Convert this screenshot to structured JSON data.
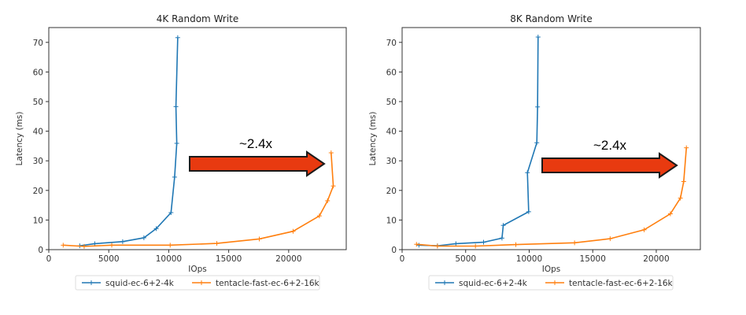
{
  "chart_data": [
    {
      "type": "line",
      "title": "4K  Random Write",
      "xlabel": "IOps",
      "ylabel": "Latency (ms)",
      "xlim": [
        0,
        24800
      ],
      "ylim": [
        0,
        75
      ],
      "xticks": [
        0,
        5000,
        10000,
        15000,
        20000
      ],
      "yticks": [
        0,
        10,
        20,
        30,
        40,
        50,
        60,
        70
      ],
      "grid": false,
      "legend": "bottom-center",
      "annotation": "~2.4x",
      "series": [
        {
          "name": "squid-ec-6+2-4k",
          "color": "#1f77b4",
          "x": [
            2580,
            3830,
            6160,
            7930,
            8960,
            10190,
            10490,
            10670,
            10600,
            10750
          ],
          "y": [
            1.3,
            2.0,
            2.7,
            4.0,
            7.1,
            12.5,
            24.5,
            35.9,
            48.3,
            71.6
          ]
        },
        {
          "name": "tentacle-fast-ec-6+2-16k",
          "color": "#ff7f0e",
          "x": [
            1200,
            2950,
            5250,
            10120,
            14010,
            17550,
            20370,
            22560,
            23240,
            23720,
            23540
          ],
          "y": [
            1.5,
            1.1,
            1.5,
            1.5,
            2.1,
            3.6,
            6.2,
            11.4,
            16.5,
            21.5,
            32.7
          ]
        }
      ]
    },
    {
      "type": "line",
      "title": "8K  Random Write",
      "xlabel": "IOps",
      "ylabel": "Latency (ms)",
      "xlim": [
        0,
        23470
      ],
      "ylim": [
        0,
        75
      ],
      "xticks": [
        0,
        5000,
        10000,
        15000,
        20000
      ],
      "yticks": [
        0,
        10,
        20,
        30,
        40,
        50,
        60,
        70
      ],
      "grid": false,
      "legend": "bottom-center",
      "annotation": "~2.4x",
      "series": [
        {
          "name": "squid-ec-6+2-4k",
          "color": "#1f77b4",
          "x": [
            1320,
            2780,
            4230,
            6410,
            7860,
            7960,
            9960,
            9860,
            10600,
            10660,
            10700
          ],
          "y": [
            1.5,
            1.3,
            2.0,
            2.5,
            3.9,
            8.2,
            12.8,
            26.0,
            36.1,
            48.2,
            71.8
          ]
        },
        {
          "name": "tentacle-fast-ec-6+2-16k",
          "color": "#ff7f0e",
          "x": [
            1130,
            2780,
            5770,
            8950,
            13570,
            16370,
            19050,
            21110,
            21900,
            22160,
            22370
          ],
          "y": [
            1.8,
            1.2,
            1.2,
            1.7,
            2.3,
            3.7,
            6.7,
            12.1,
            17.4,
            23.0,
            34.4
          ]
        }
      ]
    }
  ],
  "colors": {
    "arrow_fill": "#e83a10",
    "arrow_stroke": "#1a1a1a"
  }
}
